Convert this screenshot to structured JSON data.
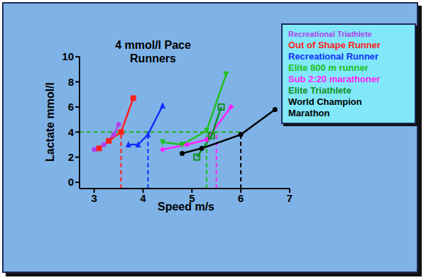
{
  "chart_data": {
    "type": "line",
    "title": "4 mmol/l Pace Runners",
    "x_label": "Speed m/s",
    "y_label": "Lactate mmol/l",
    "xlim": [
      2.7,
      7
    ],
    "ylim": [
      -0.5,
      10
    ],
    "xticks": [
      3,
      4,
      5,
      6,
      7
    ],
    "yticks": [
      0,
      2,
      4,
      6,
      8,
      10
    ],
    "grid": false,
    "legend": "upper right",
    "reference_line": {
      "y": 4,
      "color": "#20b020",
      "line_style": "dashed"
    },
    "series": [
      {
        "name": "Recreational Triathlete",
        "color": "#b040f0",
        "marker": "circle",
        "x": [
          3.0,
          3.2,
          3.4,
          3.5
        ],
        "values": [
          2.6,
          3.0,
          3.8,
          4.6
        ]
      },
      {
        "name": "Out of Shape Runner",
        "color": "#ff2020",
        "marker": "square",
        "x": [
          3.1,
          3.3,
          3.55,
          3.8
        ],
        "values": [
          2.7,
          3.3,
          4.0,
          6.7
        ],
        "threshold": 3.55
      },
      {
        "name": "Recreational Runner",
        "color": "#1030ff",
        "marker": "triangle",
        "x": [
          3.7,
          3.9,
          4.1,
          4.4
        ],
        "values": [
          3.0,
          3.0,
          3.8,
          6.1
        ],
        "threshold": 4.1
      },
      {
        "name": "Elite 800 m runner",
        "color": "#20c020",
        "marker": "triangle-down",
        "x": [
          4.4,
          4.8,
          5.3,
          5.7
        ],
        "values": [
          3.2,
          3.0,
          4.1,
          8.6
        ],
        "threshold": 5.3
      },
      {
        "name": "Sub 2:20 marathoner",
        "color": "#ff20ff",
        "marker": "diamond",
        "x": [
          4.4,
          4.9,
          5.3,
          5.8
        ],
        "values": [
          2.6,
          3.0,
          3.4,
          6.0
        ],
        "threshold": 5.5
      },
      {
        "name": "Elite Triathlete",
        "color": "#109020",
        "marker": "square-open",
        "x": [
          5.1,
          5.4,
          5.6
        ],
        "values": [
          2.0,
          3.7,
          6.0
        ]
      },
      {
        "name": "World Champion Marathon",
        "color": "#000000",
        "marker": "circle",
        "x": [
          4.8,
          5.2,
          6.0,
          6.7
        ],
        "values": [
          2.3,
          2.7,
          3.8,
          5.8
        ],
        "threshold": 6.0
      }
    ]
  }
}
